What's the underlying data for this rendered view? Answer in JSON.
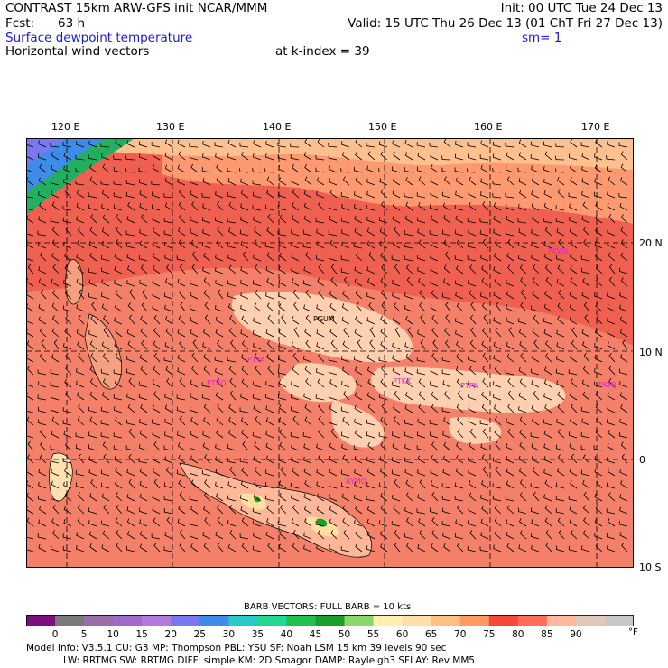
{
  "header": {
    "title": "CONTRAST 15km ARW-GFS init   NCAR/MMM",
    "init": "Init: 00 UTC Tue 24 Dec 13",
    "fcst_label": "Fcst:",
    "fcst_value": "63 h",
    "valid": "Valid: 15 UTC Thu 26 Dec 13 (01 ChT Fri 27 Dec 13)",
    "field": "Surface dewpoint temperature",
    "smoothing": "sm= 1",
    "vectors": "Horizontal wind vectors",
    "level": "at k-index =  39"
  },
  "map": {
    "lon_labels": [
      "120 E",
      "130 E",
      "140 E",
      "150 E",
      "160 E",
      "170 E"
    ],
    "lat_labels": [
      "20 N",
      "10 N",
      "0",
      "10 S"
    ],
    "stations": [
      {
        "id": "PGUM",
        "color": "#000000"
      },
      {
        "id": "PTYA",
        "color": "#e020e0"
      },
      {
        "id": "PTKK",
        "color": "#e020e0"
      },
      {
        "id": "PTPN",
        "color": "#e020e0"
      },
      {
        "id": "PKMJ",
        "color": "#e020e0"
      },
      {
        "id": "PKWA",
        "color": "#e020e0"
      },
      {
        "id": "PTRO",
        "color": "#e020e0"
      },
      {
        "id": "AYMO",
        "color": "#e020e0"
      }
    ]
  },
  "legend": {
    "barb_text": "BARB VECTORS:  FULL BARB = 10 kts",
    "labels": [
      "0",
      "5",
      "10",
      "15",
      "20",
      "25",
      "30",
      "35",
      "40",
      "45",
      "50",
      "55",
      "60",
      "65",
      "70",
      "75",
      "80",
      "85",
      "90"
    ],
    "unit": "°F",
    "colors": [
      "#7d0f7d",
      "#7a7a7a",
      "#9a6fa8",
      "#a06ac8",
      "#b07adf",
      "#7a78f0",
      "#3c8ce8",
      "#2ac8c8",
      "#22d890",
      "#22c050",
      "#1aa02a",
      "#8ad86a",
      "#fff0b0",
      "#ffe0a8",
      "#ffc080",
      "#ff9a60",
      "#f54a3a",
      "#ff6e5a",
      "#ffb7a0",
      "#e0c8b8",
      "#c8c8c8"
    ]
  },
  "model_info": {
    "line1": "Model Info: V3.5.1     CU: G3       MP: Thompson     PBL: YSU       SF: Noah LSM     15 km    39 levels   90 sec",
    "line2": "LW: RRTMG     SW: RRTMG   DIFF: simple KM: 2D Smagor DAMP: Rayleigh3   SFLAY: Rev MM5"
  }
}
